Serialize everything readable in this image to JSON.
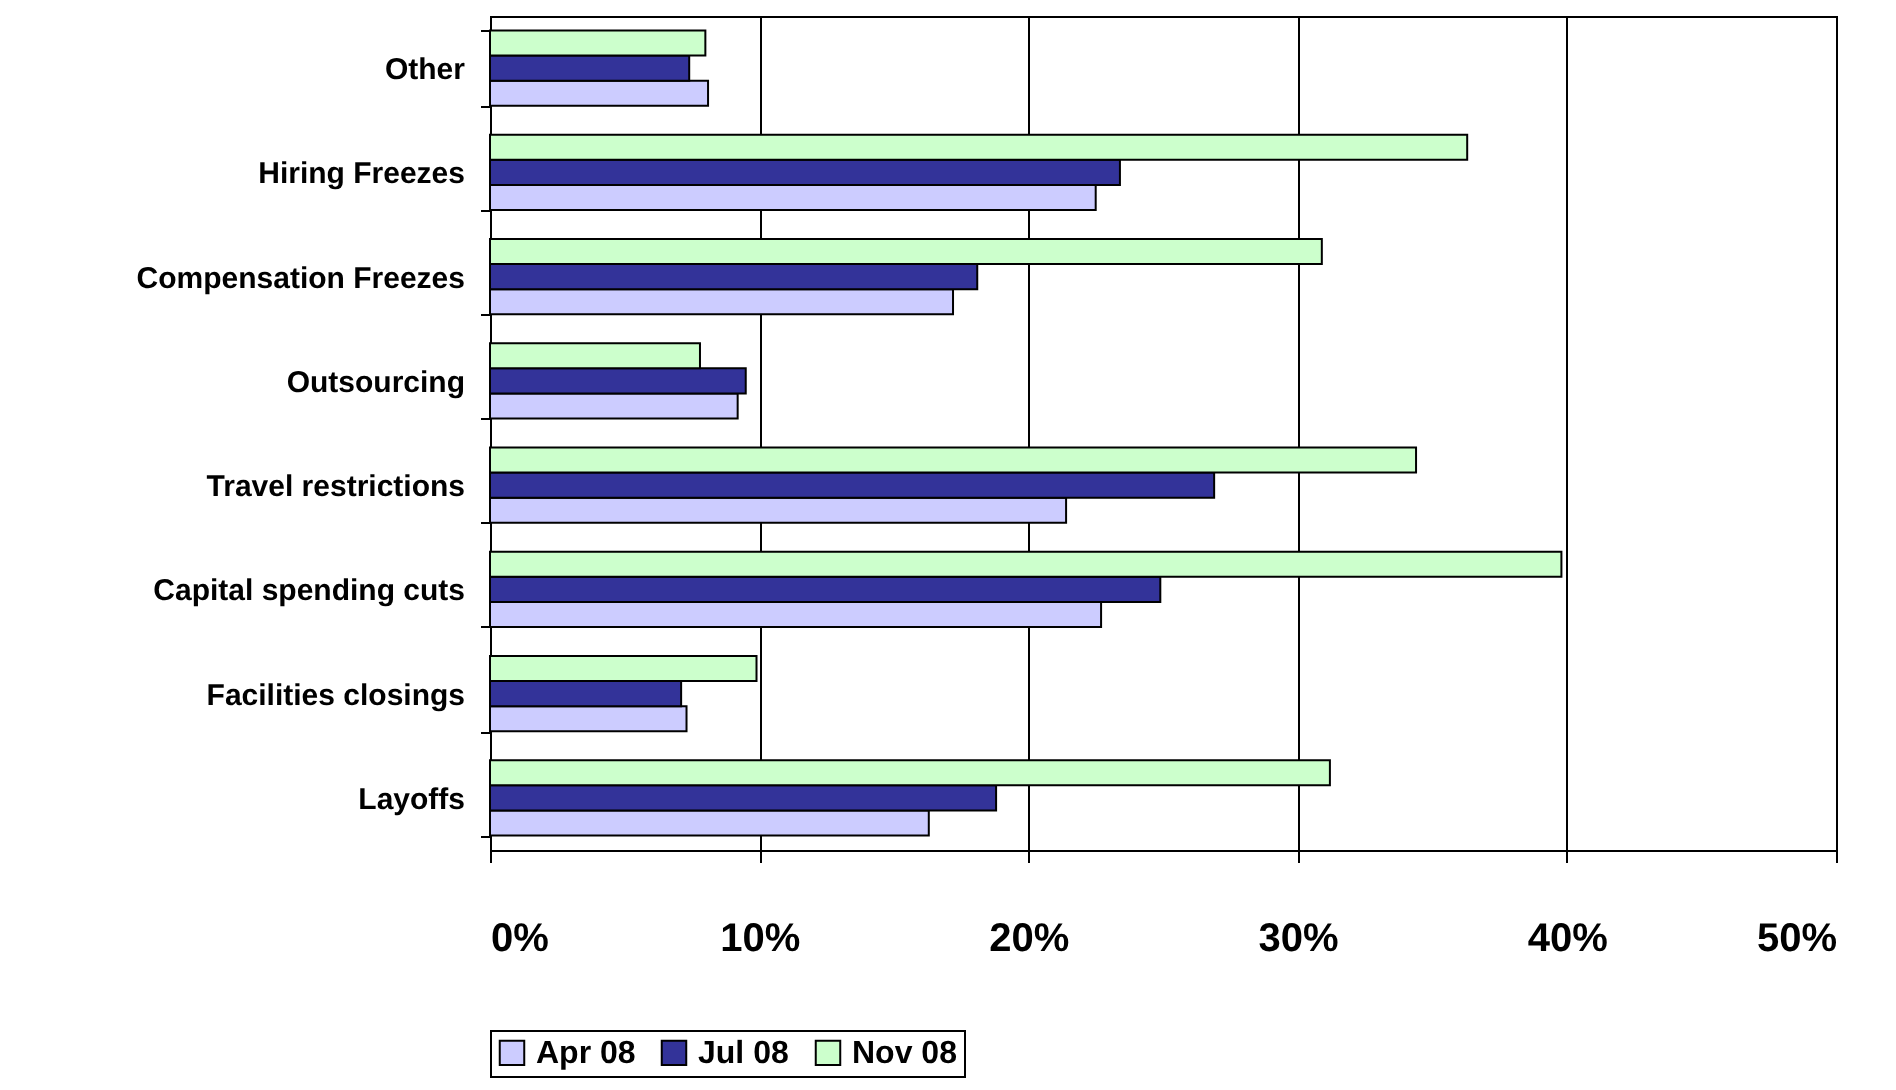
{
  "chart_data": {
    "type": "bar",
    "orientation": "horizontal",
    "categories": [
      "Other",
      "Hiring Freezes",
      "Compensation Freezes",
      "Outsourcing",
      "Travel restrictions",
      "Capital spending cuts",
      "Facilities closings",
      "Layoffs"
    ],
    "series": [
      {
        "name": "Apr 08",
        "color": "#ccccff",
        "values": [
          8.1,
          22.5,
          17.2,
          9.2,
          21.4,
          22.7,
          7.3,
          16.3
        ]
      },
      {
        "name": "Jul 08",
        "color": "#333399",
        "values": [
          7.4,
          23.4,
          18.1,
          9.5,
          26.9,
          24.9,
          7.1,
          18.8
        ]
      },
      {
        "name": "Nov 08",
        "color": "#ccffcc",
        "values": [
          8.0,
          36.3,
          30.9,
          7.8,
          34.4,
          39.8,
          9.9,
          31.2
        ]
      }
    ],
    "xlim": [
      0,
      50
    ],
    "xticks": [
      {
        "value": 0,
        "label": "0%"
      },
      {
        "value": 10,
        "label": "10%"
      },
      {
        "value": 20,
        "label": "20%"
      },
      {
        "value": 30,
        "label": "30%"
      },
      {
        "value": 40,
        "label": "40%"
      },
      {
        "value": 50,
        "label": "50%"
      }
    ],
    "grid": "x",
    "legend": "bottom"
  }
}
